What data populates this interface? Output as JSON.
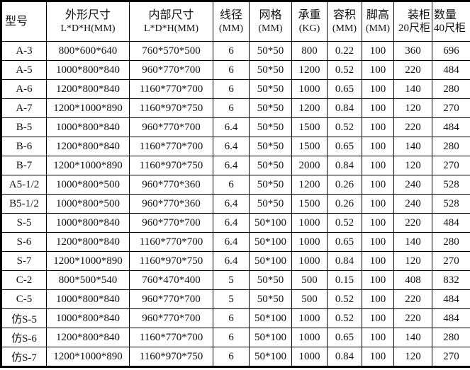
{
  "headers": [
    {
      "line1": "型号",
      "line2": ""
    },
    {
      "line1": "外形尺寸",
      "line2": "L*D*H(MM)"
    },
    {
      "line1": "内部尺寸",
      "line2": "L*D*H(MM)"
    },
    {
      "line1": "线径",
      "line2": "(MM)"
    },
    {
      "line1": "网格",
      "line2": "(MM)"
    },
    {
      "line1": "承重",
      "line2": "(KG)"
    },
    {
      "line1": "容积",
      "line2": "(MM)"
    },
    {
      "line1": "脚高",
      "line2": "(MM)"
    },
    {
      "line1": "装柜",
      "line2": "20尺柜"
    },
    {
      "line1": "数量",
      "line2": "40尺柜"
    }
  ],
  "rows": [
    [
      "A-3",
      "800*600*640",
      "760*570*500",
      "6",
      "50*50",
      "800",
      "0.22",
      "100",
      "360",
      "696"
    ],
    [
      "A-5",
      "1000*800*840",
      "960*770*700",
      "6",
      "50*50",
      "1200",
      "0.52",
      "100",
      "220",
      "484"
    ],
    [
      "A-6",
      "1200*800*840",
      "1160*770*700",
      "6",
      "50*50",
      "1000",
      "0.65",
      "100",
      "140",
      "280"
    ],
    [
      "A-7",
      "1200*1000*890",
      "1160*970*750",
      "6",
      "50*50",
      "1200",
      "0.84",
      "100",
      "120",
      "270"
    ],
    [
      "B-5",
      "1000*800*840",
      "960*770*700",
      "6.4",
      "50*50",
      "1500",
      "0.52",
      "100",
      "220",
      "484"
    ],
    [
      "B-6",
      "1200*800*840",
      "1160*770*700",
      "6.4",
      "50*50",
      "1500",
      "0.65",
      "100",
      "140",
      "280"
    ],
    [
      "B-7",
      "1200*1000*890",
      "1160*970*750",
      "6.4",
      "50*50",
      "2000",
      "0.84",
      "100",
      "120",
      "270"
    ],
    [
      "A5-1/2",
      "1000*800*500",
      "960*770*360",
      "6",
      "50*50",
      "1200",
      "0.26",
      "100",
      "240",
      "528"
    ],
    [
      "B5-1/2",
      "1000*800*500",
      "960*770*360",
      "6.4",
      "50*50",
      "1500",
      "0.26",
      "100",
      "240",
      "528"
    ],
    [
      "S-5",
      "1000*800*840",
      "960*770*700",
      "6.4",
      "50*100",
      "1000",
      "0.52",
      "100",
      "220",
      "484"
    ],
    [
      "S-6",
      "1200*800*840",
      "1160*770*700",
      "6.4",
      "50*100",
      "1000",
      "0.65",
      "100",
      "140",
      "280"
    ],
    [
      "S-7",
      "1200*1000*890",
      "1160*970*750",
      "6.4",
      "50*100",
      "1000",
      "0.84",
      "100",
      "120",
      "270"
    ],
    [
      "C-2",
      "800*500*540",
      "760*470*400",
      "5",
      "50*50",
      "500",
      "0.15",
      "100",
      "408",
      "832"
    ],
    [
      "C-5",
      "1000*800*840",
      "960*770*700",
      "5",
      "50*50",
      "500",
      "0.52",
      "100",
      "220",
      "484"
    ],
    [
      "仿S-5",
      "1000*800*840",
      "960*770*700",
      "6",
      "50*100",
      "1000",
      "0.52",
      "100",
      "220",
      "484"
    ],
    [
      "仿S-6",
      "1200*800*840",
      "1160*770*700",
      "6",
      "50*100",
      "1000",
      "0.65",
      "100",
      "140",
      "280"
    ],
    [
      "仿S-7",
      "1200*1000*890",
      "1160*970*750",
      "6",
      "50*100",
      "1000",
      "0.84",
      "100",
      "120",
      "270"
    ]
  ]
}
